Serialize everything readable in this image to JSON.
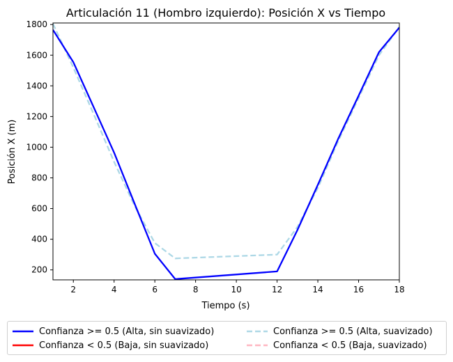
{
  "chart_data": {
    "type": "line",
    "title": "Articulación 11 (Hombro izquierdo): Posición X vs Tiempo",
    "xlabel": "Tiempo (s)",
    "ylabel": "Posición X (m)",
    "xlim": [
      1,
      18
    ],
    "ylim": [
      135,
      1810
    ],
    "xticks": [
      2,
      4,
      6,
      8,
      10,
      12,
      14,
      16,
      18
    ],
    "yticks": [
      200,
      400,
      600,
      800,
      1000,
      1200,
      1400,
      1600,
      1800
    ],
    "grid": false,
    "legend_position": "bottom",
    "series": [
      {
        "name": "Confianza >= 0.5 (Alta, sin suavizado)",
        "color": "#0000ff",
        "style": "solid",
        "x": [
          1,
          2,
          3,
          4,
          5,
          6,
          7,
          12,
          13,
          14,
          15,
          16,
          17,
          18
        ],
        "y": [
          1765,
          1555,
          1260,
          965,
          635,
          305,
          140,
          190,
          460,
          755,
          1055,
          1335,
          1620,
          1780
        ]
      },
      {
        "name": "Confianza < 0.5 (Baja, sin suavizado)",
        "color": "#ff0000",
        "style": "solid",
        "x": [],
        "y": []
      },
      {
        "name": "Confianza >= 0.5 (Alta, suavizado)",
        "color": "#add8e6",
        "style": "dashed",
        "x": [
          1,
          2,
          3,
          4,
          5,
          6,
          7,
          12,
          13,
          14,
          15,
          16,
          17,
          18
        ],
        "y": [
          1805,
          1520,
          1215,
          905,
          620,
          375,
          275,
          300,
          480,
          735,
          1040,
          1320,
          1600,
          1785
        ]
      },
      {
        "name": "Confianza < 0.5 (Baja, suavizado)",
        "color": "#ffb6c1",
        "style": "dashed",
        "x": [],
        "y": []
      }
    ]
  }
}
